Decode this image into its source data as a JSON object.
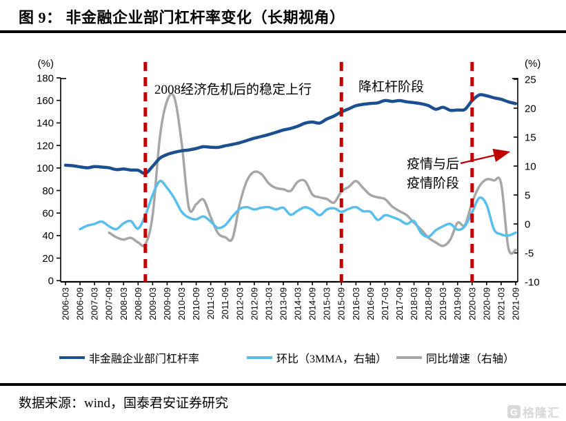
{
  "title": "图 9：  非金融企业部门杠杆率变化（长期视角）",
  "source": "数据来源：wind，国泰君安证券研究",
  "logo": {
    "icon_letter": "G",
    "text": "格隆汇",
    "color": "#d9d9d9"
  },
  "colors": {
    "leverage_line": "#1b4f8f",
    "mom_line": "#56bfee",
    "yoy_line": "#a6a6a6",
    "event_line": "#c00000",
    "arrow": "#c00000",
    "axis": "#000000"
  },
  "chart_data": {
    "type": "line",
    "x_start": "2006-03",
    "x_frequency": "quarterly",
    "x_tick_labels": [
      "2006-03",
      "2006-09",
      "2007-03",
      "2007-09",
      "2008-03",
      "2008-09",
      "2009-03",
      "2009-09",
      "2010-03",
      "2010-09",
      "2011-03",
      "2011-09",
      "2012-03",
      "2012-09",
      "2013-03",
      "2013-09",
      "2014-03",
      "2014-09",
      "2015-03",
      "2015-09",
      "2016-03",
      "2016-09",
      "2017-03",
      "2017-09",
      "2018-03",
      "2018-09",
      "2019-03",
      "2019-09",
      "2020-03",
      "2020-09",
      "2021-03",
      "2021-09"
    ],
    "left_axis": {
      "label": "(%)",
      "min": 0,
      "max": 180,
      "step": 20
    },
    "right_axis": {
      "label": "(%)",
      "min": -10,
      "max": 25,
      "step": 5
    },
    "grid": false,
    "legend_position": "bottom",
    "series": [
      {
        "key": "leverage",
        "name": "非金融企业部门杠杆率",
        "axis": "left",
        "color": "#1b4f8f",
        "width": 4.5,
        "start_index": 0,
        "values": [
          102.5,
          102.0,
          101.0,
          100.2,
          101.2,
          100.8,
          100.2,
          98.6,
          99.1,
          98.2,
          98.0,
          95.2,
          101.5,
          108.7,
          112.0,
          113.9,
          115.3,
          116.0,
          117.3,
          118.9,
          118.4,
          118.3,
          119.7,
          120.9,
          122.4,
          124.4,
          126.4,
          128.0,
          129.7,
          131.7,
          133.7,
          135.1,
          137.1,
          139.8,
          140.8,
          139.9,
          143.5,
          146.2,
          149.8,
          152.5,
          155.3,
          156.5,
          157.3,
          157.8,
          159.9,
          159.1,
          159.8,
          158.7,
          158.0,
          157.0,
          155.3,
          152.1,
          153.9,
          151.2,
          151.5,
          152.0,
          159.8,
          164.9,
          164.1,
          162.3,
          161.0,
          158.7,
          157.2
        ]
      },
      {
        "key": "mom-3mma",
        "name": "环比（3MMA，右轴）",
        "axis": "right",
        "color": "#56bfee",
        "width": 3.5,
        "start_index": 2,
        "values": [
          -0.9,
          -0.3,
          0.0,
          0.4,
          -0.4,
          -0.9,
          0.1,
          0.5,
          -0.8,
          1.5,
          5.0,
          7.4,
          6.2,
          4.4,
          2.1,
          1.1,
          0.8,
          1.3,
          0.4,
          -0.7,
          -0.2,
          1.3,
          2.6,
          2.9,
          2.5,
          2.8,
          2.9,
          2.5,
          2.8,
          1.6,
          2.3,
          2.9,
          2.4,
          1.5,
          2.5,
          2.7,
          2.1,
          2.6,
          2.9,
          2.2,
          2.1,
          0.7,
          1.5,
          1.2,
          0.7,
          0.0,
          0.5,
          -1.6,
          -2.2,
          -1.1,
          -0.4,
          0.0,
          -1.0,
          -0.4,
          2.0,
          4.5,
          3.3,
          -0.9,
          -1.8,
          -2.0,
          -1.5
        ]
      },
      {
        "key": "yoy-growth",
        "name": "同比增速（右轴）",
        "axis": "right",
        "color": "#a6a6a6",
        "width": 3.5,
        "start_index": 6,
        "values": [
          -1.5,
          -2.3,
          -2.7,
          -2.4,
          -3.2,
          -3.5,
          1.5,
          15.0,
          21.3,
          21.8,
          14.0,
          2.8,
          3.4,
          4.2,
          1.2,
          -1.6,
          -2.3,
          -2.5,
          3.5,
          7.5,
          9.0,
          8.6,
          7.0,
          6.2,
          6.0,
          5.7,
          7.3,
          7.4,
          5.1,
          4.6,
          4.3,
          3.7,
          5.6,
          6.4,
          7.4,
          6.2,
          5.0,
          4.6,
          4.3,
          3.0,
          2.2,
          1.5,
          0.2,
          -1.0,
          -2.4,
          -3.2,
          -3.8,
          -2.7,
          0.2,
          -0.2,
          3.7,
          6.5,
          7.7,
          7.5,
          7.0,
          -4.2,
          -4.5
        ]
      }
    ],
    "event_lines": [
      {
        "quarter_index": 11
      },
      {
        "quarter_index": 38
      },
      {
        "quarter_index": 56
      }
    ],
    "annotations": [
      {
        "text": "2008经济危机后的稳定上行"
      },
      {
        "text": "降杠杆阶段"
      },
      {
        "text": "疫情与后"
      },
      {
        "text": "疫情阶段"
      }
    ]
  },
  "legend": {
    "items": [
      "非金融企业部门杠杆率",
      "环比（3MMA，右轴）",
      "同比增速（右轴）"
    ]
  }
}
